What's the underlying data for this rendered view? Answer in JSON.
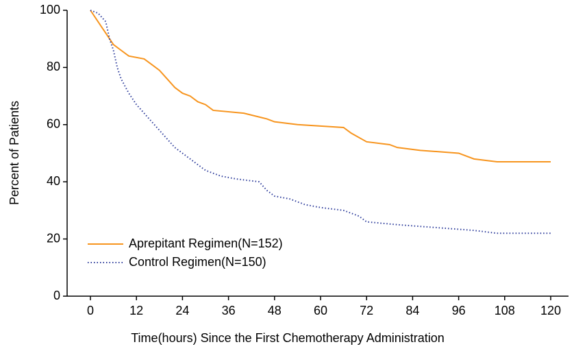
{
  "chart_data": {
    "type": "line",
    "xlabel": "Time(hours) Since the First Chemotherapy Administration",
    "ylabel": "Percent of Patients",
    "xlim": [
      0,
      120
    ],
    "xticks": [
      0,
      12,
      24,
      36,
      48,
      60,
      72,
      84,
      96,
      108,
      120
    ],
    "ylim": [
      0,
      100
    ],
    "yticks": [
      0,
      20,
      40,
      60,
      80,
      100
    ],
    "legend": "lower left",
    "series": [
      {
        "name": "Aprepitant Regimen(N=152)",
        "color": "#f7941d",
        "style": "solid",
        "x": [
          0,
          1,
          2,
          3,
          4,
          5,
          6,
          8,
          10,
          14,
          16,
          18,
          20,
          22,
          24,
          26,
          28,
          30,
          32,
          40,
          46,
          48,
          54,
          66,
          68,
          72,
          78,
          80,
          86,
          96,
          100,
          106,
          120
        ],
        "values": [
          100,
          98,
          96,
          94,
          92,
          90,
          88,
          86,
          84,
          83,
          81,
          79,
          76,
          73,
          71,
          70,
          68,
          67,
          65,
          64,
          62,
          61,
          60,
          59,
          57,
          54,
          53,
          52,
          51,
          50,
          48,
          47,
          47
        ]
      },
      {
        "name": "Control Regimen(N=150)",
        "color": "#2b3a9a",
        "style": "dotted",
        "x": [
          0,
          2,
          4,
          5,
          6,
          7,
          8,
          10,
          12,
          14,
          16,
          18,
          20,
          22,
          24,
          26,
          28,
          30,
          32,
          34,
          38,
          44,
          46,
          48,
          52,
          56,
          60,
          66,
          70,
          72,
          80,
          90,
          100,
          106,
          120
        ],
        "values": [
          100,
          99,
          96,
          90,
          86,
          80,
          76,
          71,
          67,
          64,
          61,
          58,
          55,
          52,
          50,
          48,
          46,
          44,
          43,
          42,
          41,
          40,
          37,
          35,
          34,
          32,
          31,
          30,
          28,
          26,
          25,
          24,
          23,
          22,
          22
        ]
      }
    ]
  }
}
